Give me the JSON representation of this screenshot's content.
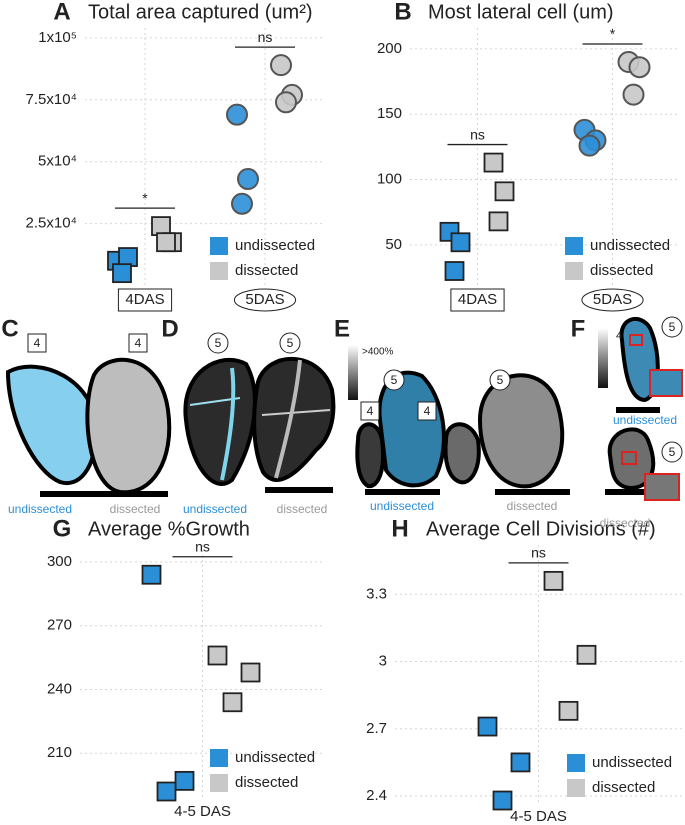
{
  "chart_data": [
    {
      "type": "scatter",
      "label": "A",
      "title": "Total area captured (um²)",
      "categories": [
        "4DAS",
        "5DAS"
      ],
      "markers": [
        "square",
        "circle"
      ],
      "category_frames": true,
      "significance": [
        "*",
        "ns"
      ],
      "ylim": [
        -1000,
        104000
      ],
      "yticks": [
        {
          "value": 25000,
          "label": "2.5x10⁴"
        },
        {
          "value": 50000,
          "label": "5x10⁴"
        },
        {
          "value": 75000,
          "label": "7.5x10⁴"
        },
        {
          "value": 100000,
          "label": "1x10⁵"
        }
      ],
      "grid": true,
      "legend": "bottom-right",
      "series": [
        {
          "name": "undissected",
          "color": "#2b8fd8",
          "x": [
            "4DAS",
            "4DAS",
            "4DAS",
            "5DAS",
            "5DAS",
            "5DAS"
          ],
          "values": [
            10000,
            11500,
            5000,
            69000,
            43000,
            33000
          ]
        },
        {
          "name": "dissected",
          "color": "#c8c8c8",
          "x": [
            "4DAS",
            "4DAS",
            "4DAS",
            "5DAS",
            "5DAS",
            "5DAS"
          ],
          "values": [
            24000,
            17500,
            17500,
            89000,
            77000,
            74000
          ]
        }
      ]
    },
    {
      "type": "scatter",
      "label": "B",
      "title": "Most lateral cell (um)",
      "categories": [
        "4DAS",
        "5DAS"
      ],
      "markers": [
        "square",
        "circle"
      ],
      "category_frames": true,
      "significance": [
        "ns",
        "*"
      ],
      "ylim": [
        17,
        216
      ],
      "yticks": [
        50,
        100,
        150,
        200
      ],
      "grid": true,
      "legend": "bottom-right",
      "series": [
        {
          "name": "undissected",
          "color": "#2b8fd8",
          "x": [
            "4DAS",
            "4DAS",
            "4DAS",
            "5DAS",
            "5DAS",
            "5DAS"
          ],
          "values": [
            60,
            52,
            30,
            138,
            130,
            126
          ]
        },
        {
          "name": "dissected",
          "color": "#c8c8c8",
          "x": [
            "4DAS",
            "4DAS",
            "4DAS",
            "5DAS",
            "5DAS",
            "5DAS"
          ],
          "values": [
            113,
            91,
            68,
            190,
            186,
            165
          ]
        }
      ]
    },
    {
      "type": "scatter",
      "label": "G",
      "title": "Average %Growth",
      "categories": [
        "4-5 DAS"
      ],
      "markers": [
        "square"
      ],
      "category_frames": false,
      "significance": [
        "ns"
      ],
      "ylim": [
        188,
        308
      ],
      "yticks": [
        210,
        240,
        270,
        300
      ],
      "grid": true,
      "legend": "bottom-right",
      "series": [
        {
          "name": "undissected",
          "color": "#2b8fd8",
          "x": [
            "4-5 DAS",
            "4-5 DAS",
            "4-5 DAS"
          ],
          "values": [
            294,
            197,
            192
          ]
        },
        {
          "name": "dissected",
          "color": "#c8c8c8",
          "x": [
            "4-5 DAS",
            "4-5 DAS",
            "4-5 DAS"
          ],
          "values": [
            256,
            248,
            234
          ]
        }
      ]
    },
    {
      "type": "scatter",
      "label": "H",
      "title": "Average Cell Divisions (#)",
      "categories": [
        "4-5 DAS"
      ],
      "markers": [
        "square"
      ],
      "category_frames": false,
      "significance": [
        "ns"
      ],
      "ylim": [
        2.36,
        3.52
      ],
      "yticks": [
        2.4,
        2.7,
        3,
        3.3
      ],
      "grid": true,
      "legend": "bottom-right",
      "series": [
        {
          "name": "undissected",
          "color": "#2b8fd8",
          "x": [
            "4-5 DAS",
            "4-5 DAS",
            "4-5 DAS"
          ],
          "values": [
            2.71,
            2.55,
            2.38
          ]
        },
        {
          "name": "dissected",
          "color": "#c8c8c8",
          "x": [
            "4-5 DAS",
            "4-5 DAS",
            "4-5 DAS"
          ],
          "values": [
            3.36,
            3.03,
            2.78
          ]
        }
      ]
    }
  ],
  "image_panels": [
    {
      "label": "C",
      "badges": [
        "4",
        "4"
      ],
      "captions": [
        "undissected",
        "dissected"
      ]
    },
    {
      "label": "D",
      "badges": [
        "5",
        "5"
      ],
      "captions": [
        "undissected",
        "dissected"
      ]
    },
    {
      "label": "E",
      "scale_label": ">400%",
      "badges": [
        "5",
        "5",
        "4",
        "4"
      ],
      "captions": [
        "undissected",
        "dissected"
      ]
    },
    {
      "label": "F",
      "scale_label": "4",
      "badges": [
        "5",
        "5"
      ],
      "captions": [
        "undissected",
        "dissected"
      ]
    }
  ]
}
